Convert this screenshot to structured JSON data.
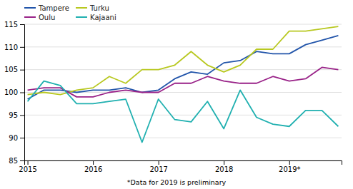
{
  "chart_data": {
    "type": "line",
    "x": [
      2015.0,
      2015.25,
      2015.5,
      2015.75,
      2016.0,
      2016.25,
      2016.5,
      2016.75,
      2017.0,
      2017.25,
      2017.5,
      2017.75,
      2018.0,
      2018.25,
      2018.5,
      2018.75,
      2019.0,
      2019.25,
      2019.5,
      2019.75
    ],
    "series": [
      {
        "name": "Tampere",
        "color": "#2255aa",
        "values": [
          98.5,
          100.5,
          100.5,
          100.0,
          100.5,
          100.5,
          101.0,
          100.0,
          100.5,
          103.0,
          104.5,
          104.0,
          106.5,
          107.0,
          109.0,
          108.5,
          108.5,
          110.5,
          111.5,
          112.5
        ]
      },
      {
        "name": "Turku",
        "color": "#b8c820",
        "values": [
          99.5,
          100.0,
          99.5,
          100.5,
          101.0,
          103.5,
          102.0,
          105.0,
          105.0,
          106.0,
          109.0,
          106.0,
          104.5,
          106.0,
          109.5,
          109.5,
          113.5,
          113.5,
          114.0,
          114.5
        ]
      },
      {
        "name": "Oulu",
        "color": "#992288",
        "values": [
          100.5,
          101.0,
          101.0,
          99.0,
          99.0,
          100.0,
          100.5,
          100.0,
          100.0,
          102.0,
          102.0,
          103.5,
          102.5,
          102.0,
          102.0,
          103.5,
          102.5,
          103.0,
          105.5,
          105.0
        ]
      },
      {
        "name": "Kajaani",
        "color": "#20b0b0",
        "values": [
          98.0,
          102.5,
          101.5,
          97.5,
          97.5,
          98.0,
          98.5,
          89.0,
          98.5,
          94.0,
          93.5,
          98.0,
          92.0,
          100.5,
          94.5,
          93.0,
          92.5,
          96.0,
          96.0,
          92.5
        ]
      }
    ],
    "xlim": [
      2014.95,
      2019.8
    ],
    "xticks": [
      2015,
      2016,
      2017,
      2018,
      {
        "value": 2019,
        "label": "2019*"
      }
    ],
    "ylim": [
      85,
      115
    ],
    "yticks": [
      85,
      90,
      95,
      100,
      105,
      110,
      115
    ],
    "grid": true,
    "legend": "upper-left",
    "annotations": [
      "*Data for 2019 is preliminary"
    ]
  }
}
